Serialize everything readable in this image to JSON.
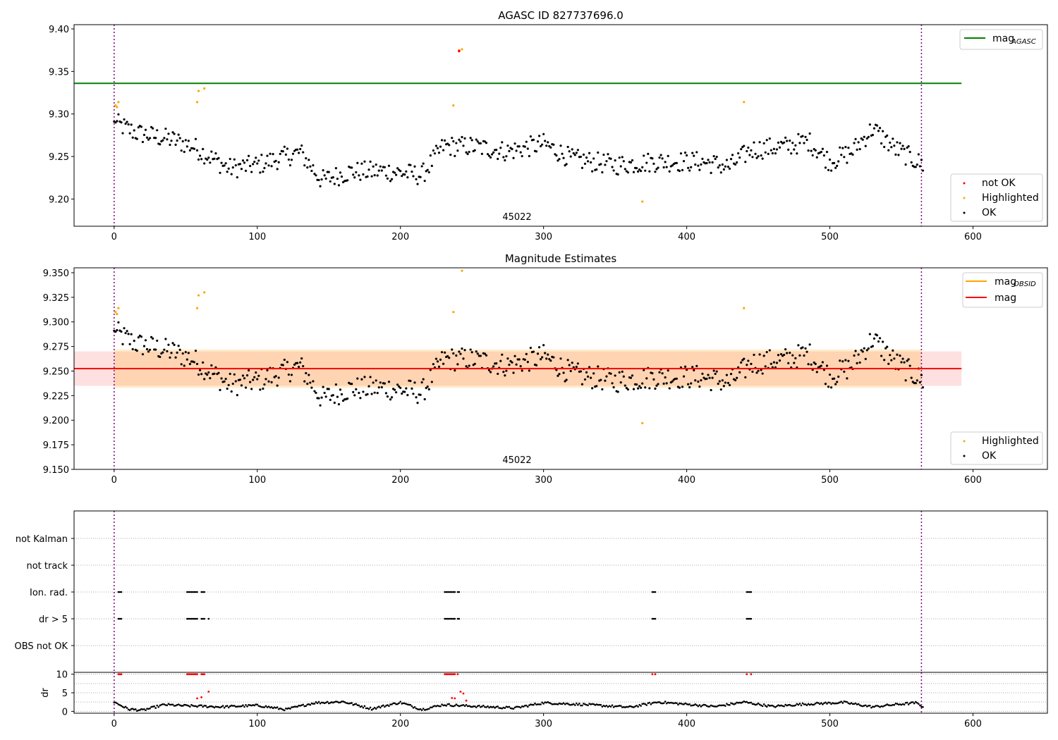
{
  "figure": {
    "title_top": "AGASC ID 827737696.0",
    "title_mid": "Magnitude Estimates",
    "obsid_label": "45022"
  },
  "colors": {
    "ok": "#000000",
    "not_ok": "#ff0000",
    "highlighted": "#ffa500",
    "mag_agasc": "#008000",
    "mag_obsid": "#ffa500",
    "mag": "#ff0000",
    "vline": "#800080"
  },
  "chart_data": [
    {
      "type": "scatter",
      "title": "AGASC ID 827737696.0",
      "annotation": "45022",
      "xlim": [
        -28,
        652
      ],
      "ylim": [
        9.168,
        9.405
      ],
      "xticks": [
        0,
        100,
        200,
        300,
        400,
        500,
        600
      ],
      "yticks": [
        9.2,
        9.25,
        9.3,
        9.35,
        9.4
      ],
      "ytick_labels": [
        "9.20",
        "9.25",
        "9.30",
        "9.35",
        "9.40"
      ],
      "vlines": [
        0,
        564
      ],
      "hlines": [
        {
          "name": "mag_AGASC",
          "y": 9.336,
          "x_range": [
            -28,
            592
          ]
        }
      ],
      "legend": {
        "top-right": [
          "mag_AGASC"
        ],
        "bottom-right": [
          "not OK",
          "Highlighted",
          "OK"
        ]
      },
      "series": [
        {
          "name": "OK",
          "description": "black points",
          "trend": {
            "x": [
              0,
              15,
              40,
              55,
              80,
              100,
              130,
              145,
              165,
              190,
              215,
              230,
              250,
              275,
              300,
              320,
              350,
              380,
              410,
              430,
              445,
              470,
              485,
              500,
              515,
              530,
              545,
              565
            ],
            "y": [
              9.29,
              9.278,
              9.27,
              9.262,
              9.236,
              9.24,
              9.255,
              9.222,
              9.232,
              9.233,
              9.228,
              9.262,
              9.262,
              9.256,
              9.265,
              9.247,
              9.24,
              9.244,
              9.244,
              9.238,
              9.258,
              9.262,
              9.268,
              9.244,
              9.255,
              9.283,
              9.26,
              9.24
            ]
          },
          "spread": 0.012
        },
        {
          "name": "Highlighted",
          "x": [
            1,
            2,
            3,
            58,
            59,
            63,
            237,
            241,
            243,
            369,
            440
          ],
          "y": [
            9.31,
            9.308,
            9.314,
            9.314,
            9.327,
            9.33,
            9.31,
            9.375,
            9.376,
            9.197,
            9.314
          ]
        },
        {
          "name": "not OK",
          "x": [
            241
          ],
          "y": [
            9.374
          ]
        }
      ]
    },
    {
      "type": "scatter",
      "title": "Magnitude Estimates",
      "annotation": "45022",
      "xlim": [
        -28,
        652
      ],
      "ylim": [
        9.15,
        9.355
      ],
      "xticks": [
        0,
        100,
        200,
        300,
        400,
        500,
        600
      ],
      "yticks": [
        9.15,
        9.175,
        9.2,
        9.225,
        9.25,
        9.275,
        9.3,
        9.325,
        9.35
      ],
      "ytick_labels": [
        "9.150",
        "9.175",
        "9.200",
        "9.225",
        "9.250",
        "9.275",
        "9.300",
        "9.325",
        "9.350"
      ],
      "vlines": [
        0,
        564
      ],
      "hlines": [
        {
          "name": "mag",
          "y": 9.2525,
          "x_range": [
            -28,
            592
          ]
        },
        {
          "name": "mag_OBSID",
          "y": 9.2525,
          "x_range": [
            0,
            564
          ]
        }
      ],
      "bands": [
        {
          "name": "mag",
          "y_range": [
            9.235,
            9.27
          ],
          "x_range": [
            -28,
            592
          ]
        },
        {
          "name": "mag_OBSID",
          "y_range": [
            9.233,
            9.272
          ],
          "x_range": [
            0,
            564
          ]
        }
      ],
      "legend": {
        "top-right": [
          "mag_OBSID",
          "mag"
        ],
        "bottom-right": [
          "Highlighted",
          "OK"
        ]
      },
      "series": [
        {
          "name": "OK",
          "description": "same points as top panel"
        },
        {
          "name": "Highlighted",
          "x": [
            1,
            2,
            3,
            58,
            59,
            63,
            237,
            243,
            369,
            440
          ],
          "y": [
            9.31,
            9.308,
            9.314,
            9.314,
            9.327,
            9.33,
            9.31,
            9.352,
            9.197,
            9.314
          ]
        }
      ]
    },
    {
      "type": "scatter",
      "xlim": [
        -28,
        652
      ],
      "categories": [
        "not Kalman",
        "not track",
        "Ion. rad.",
        "dr > 5",
        "OBS not OK"
      ],
      "vlines": [
        0,
        564
      ],
      "flag_groups": [
        [
          3,
          5
        ],
        [
          51,
          58
        ],
        [
          61,
          63
        ],
        [
          231,
          238
        ],
        [
          240,
          241
        ],
        [
          376,
          378
        ],
        [
          442,
          445
        ]
      ],
      "flags": {
        "Ion. rad.": [
          [
            3,
            5
          ],
          [
            51,
            58
          ],
          [
            61,
            63
          ],
          [
            231,
            238
          ],
          [
            240,
            241
          ],
          [
            376,
            378
          ],
          [
            442,
            445
          ]
        ],
        "dr > 5": [
          [
            3,
            5
          ],
          [
            51,
            58
          ],
          [
            61,
            63
          ],
          [
            66,
            66
          ],
          [
            231,
            238
          ],
          [
            240,
            241
          ],
          [
            376,
            378
          ],
          [
            442,
            445
          ]
        ]
      }
    },
    {
      "type": "scatter",
      "ylabel": "dr",
      "xlim": [
        -28,
        652
      ],
      "ylim": [
        -0.5,
        10.5
      ],
      "xticks": [
        0,
        100,
        200,
        300,
        400,
        500,
        600
      ],
      "yticks": [
        0,
        5,
        10
      ],
      "ytick_labels": [
        "0",
        "5",
        "10"
      ],
      "vlines": [
        0,
        564
      ],
      "series": [
        {
          "name": "dr",
          "trend": {
            "x": [
              0,
              10,
              20,
              35,
              50,
              60,
              75,
              100,
              120,
              140,
              160,
              180,
              200,
              215,
              230,
              250,
              280,
              300,
              330,
              360,
              380,
              420,
              440,
              460,
              480,
              510,
              530,
              545,
              560,
              565
            ],
            "y": [
              2.5,
              0.6,
              0.3,
              1.8,
              1.5,
              1.4,
              1.2,
              1.6,
              0.5,
              2.3,
              2.6,
              0.7,
              2.4,
              0.5,
              1.8,
              1.4,
              0.9,
              2.3,
              1.8,
              1.1,
              2.5,
              1.3,
              2.5,
              1.3,
              1.9,
              2.4,
              1.2,
              1.8,
              2.3,
              1.3
            ]
          }
        },
        {
          "name": "red dr",
          "x": [
            3,
            4,
            5,
            51,
            52,
            53,
            54,
            55,
            56,
            57,
            58,
            61,
            62,
            63,
            231,
            232,
            233,
            234,
            235,
            236,
            237,
            238,
            240,
            376,
            378,
            442,
            445,
            58,
            61,
            66,
            236,
            238,
            242,
            244,
            246
          ],
          "y": [
            10,
            10,
            10,
            10,
            10,
            10,
            10,
            10,
            10,
            10,
            10,
            10,
            10,
            10,
            10,
            10,
            10,
            10,
            10,
            10,
            10,
            10,
            10,
            10,
            10,
            10,
            10,
            3.5,
            3.8,
            5.3,
            3.6,
            3.5,
            5.3,
            4.8,
            2.9
          ]
        }
      ]
    }
  ]
}
